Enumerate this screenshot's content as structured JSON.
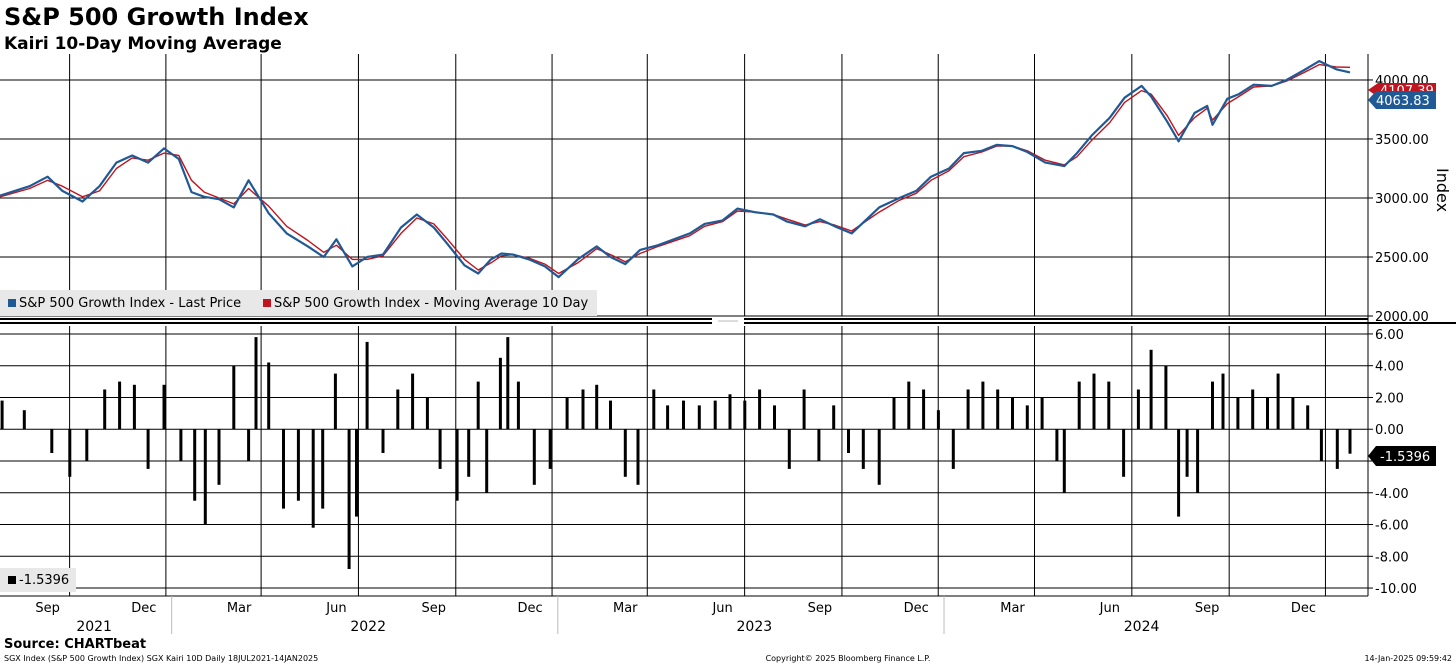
{
  "header": {
    "title": "S&P 500 Growth Index",
    "subtitle": "Kairi 10-Day Moving Average"
  },
  "footer": {
    "source": "Source: CHARTbeat",
    "left": "SGX Index (S&P 500 Growth Index) SGX Kairi 10D  Daily 18JUL2021-14JAN2025",
    "center": "Copyright© 2025 Bloomberg Finance L.P.",
    "right": "14-Jan-2025 09:59:42"
  },
  "colors": {
    "price": "#1f5a96",
    "moving_average": "#c0141e",
    "kairi": "#000000",
    "grid": "#000000"
  },
  "chart_data": [
    {
      "type": "line",
      "ylabel": "Index",
      "ylim": [
        2000,
        4220
      ],
      "yticks": [
        "2000.00",
        "2500.00",
        "3000.00",
        "3500.00",
        "4000.00"
      ],
      "grid": true,
      "legend_placement": "bottom-left",
      "legend": [
        "S&P 500 Growth Index - Last Price",
        "S&P 500 Growth Index - Moving Average 10 Day"
      ],
      "last_value_tag": "4063.83",
      "ma_tag_partial": "4107.39",
      "series": [
        {
          "name": "S&P 500 Growth Index - Last Price",
          "x": [
            "2021-07-18",
            "2021-08-15",
            "2021-09-01",
            "2021-09-15",
            "2021-10-04",
            "2021-10-20",
            "2021-11-05",
            "2021-11-20",
            "2021-12-05",
            "2021-12-20",
            "2022-01-03",
            "2022-01-15",
            "2022-01-27",
            "2022-02-10",
            "2022-02-24",
            "2022-03-10",
            "2022-03-29",
            "2022-04-15",
            "2022-05-05",
            "2022-05-20",
            "2022-06-01",
            "2022-06-16",
            "2022-06-30",
            "2022-07-15",
            "2022-08-01",
            "2022-08-16",
            "2022-09-01",
            "2022-09-13",
            "2022-09-30",
            "2022-10-13",
            "2022-10-25",
            "2022-11-04",
            "2022-11-15",
            "2022-11-30",
            "2022-12-15",
            "2022-12-28",
            "2023-01-15",
            "2023-02-02",
            "2023-02-15",
            "2023-03-01",
            "2023-03-15",
            "2023-04-01",
            "2023-05-01",
            "2023-05-15",
            "2023-06-01",
            "2023-06-15",
            "2023-07-01",
            "2023-07-19",
            "2023-08-01",
            "2023-08-18",
            "2023-09-01",
            "2023-09-15",
            "2023-10-01",
            "2023-10-27",
            "2023-11-15",
            "2023-12-01",
            "2023-12-15",
            "2024-01-01",
            "2024-01-15",
            "2024-02-01",
            "2024-02-15",
            "2024-03-01",
            "2024-03-15",
            "2024-04-01",
            "2024-04-19",
            "2024-05-01",
            "2024-05-15",
            "2024-06-01",
            "2024-06-15",
            "2024-07-01",
            "2024-07-10",
            "2024-07-25",
            "2024-08-05",
            "2024-08-20",
            "2024-09-01",
            "2024-09-06",
            "2024-09-20",
            "2024-10-01",
            "2024-10-15",
            "2024-11-01",
            "2024-11-15",
            "2024-12-01",
            "2024-12-16",
            "2025-01-01",
            "2025-01-14"
          ],
          "values": [
            3020,
            3100,
            3180,
            3060,
            2970,
            3100,
            3300,
            3360,
            3300,
            3420,
            3330,
            3050,
            3010,
            2990,
            2920,
            3150,
            2870,
            2700,
            2590,
            2500,
            2650,
            2420,
            2500,
            2520,
            2750,
            2860,
            2750,
            2620,
            2430,
            2360,
            2480,
            2530,
            2520,
            2480,
            2420,
            2330,
            2480,
            2590,
            2500,
            2440,
            2560,
            2600,
            2700,
            2780,
            2810,
            2910,
            2880,
            2860,
            2800,
            2760,
            2820,
            2760,
            2700,
            2920,
            3000,
            3060,
            3180,
            3250,
            3380,
            3400,
            3450,
            3440,
            3390,
            3300,
            3270,
            3380,
            3530,
            3680,
            3850,
            3950,
            3860,
            3650,
            3480,
            3720,
            3780,
            3620,
            3840,
            3880,
            3960,
            3950,
            4000,
            4080,
            4160,
            4090,
            4064
          ]
        },
        {
          "name": "S&P 500 Growth Index - Moving Average 10 Day",
          "x": [
            "2021-07-18",
            "2021-08-15",
            "2021-09-01",
            "2021-09-15",
            "2021-10-04",
            "2021-10-20",
            "2021-11-05",
            "2021-11-20",
            "2021-12-05",
            "2021-12-20",
            "2022-01-03",
            "2022-01-15",
            "2022-01-27",
            "2022-02-10",
            "2022-02-24",
            "2022-03-10",
            "2022-03-29",
            "2022-04-15",
            "2022-05-05",
            "2022-05-20",
            "2022-06-01",
            "2022-06-16",
            "2022-06-30",
            "2022-07-15",
            "2022-08-01",
            "2022-08-16",
            "2022-09-01",
            "2022-09-13",
            "2022-09-30",
            "2022-10-13",
            "2022-10-25",
            "2022-11-04",
            "2022-11-15",
            "2022-11-30",
            "2022-12-15",
            "2022-12-28",
            "2023-01-15",
            "2023-02-02",
            "2023-02-15",
            "2023-03-01",
            "2023-03-15",
            "2023-04-01",
            "2023-05-01",
            "2023-05-15",
            "2023-06-01",
            "2023-06-15",
            "2023-07-01",
            "2023-07-19",
            "2023-08-01",
            "2023-08-18",
            "2023-09-01",
            "2023-09-15",
            "2023-10-01",
            "2023-10-27",
            "2023-11-15",
            "2023-12-01",
            "2023-12-15",
            "2024-01-01",
            "2024-01-15",
            "2024-02-01",
            "2024-02-15",
            "2024-03-01",
            "2024-03-15",
            "2024-04-01",
            "2024-04-19",
            "2024-05-01",
            "2024-05-15",
            "2024-06-01",
            "2024-06-15",
            "2024-07-01",
            "2024-07-10",
            "2024-07-25",
            "2024-08-05",
            "2024-08-20",
            "2024-09-01",
            "2024-09-06",
            "2024-09-20",
            "2024-10-01",
            "2024-10-15",
            "2024-11-01",
            "2024-11-15",
            "2024-12-01",
            "2024-12-16",
            "2025-01-01",
            "2025-01-14"
          ],
          "values": [
            3010,
            3080,
            3150,
            3100,
            3010,
            3060,
            3250,
            3340,
            3320,
            3380,
            3360,
            3150,
            3050,
            3000,
            2950,
            3080,
            2930,
            2760,
            2640,
            2540,
            2600,
            2480,
            2480,
            2510,
            2700,
            2830,
            2780,
            2660,
            2480,
            2390,
            2450,
            2510,
            2520,
            2490,
            2440,
            2360,
            2450,
            2570,
            2520,
            2460,
            2530,
            2590,
            2680,
            2760,
            2800,
            2890,
            2880,
            2860,
            2820,
            2770,
            2800,
            2770,
            2720,
            2880,
            2980,
            3040,
            3150,
            3230,
            3350,
            3390,
            3440,
            3440,
            3400,
            3320,
            3280,
            3350,
            3490,
            3640,
            3810,
            3910,
            3880,
            3700,
            3530,
            3680,
            3760,
            3660,
            3800,
            3860,
            3940,
            3950,
            3990,
            4060,
            4130,
            4110,
            4107
          ]
        }
      ]
    },
    {
      "type": "bar",
      "series_name": "SGX Kairi 10D",
      "ylim": [
        -10.5,
        6.5
      ],
      "yticks": [
        "6.00",
        "4.00",
        "2.00",
        "0.00",
        "-2.00",
        "-4.00",
        "-6.00",
        "-8.00",
        "-10.00"
      ],
      "grid": true,
      "legend_placement": "bottom-left",
      "legend": [
        "-1.5396"
      ],
      "last_value_tag": "-1.5396",
      "x": [
        "2021-07-20",
        "2021-08-10",
        "2021-09-05",
        "2021-09-22",
        "2021-10-08",
        "2021-10-25",
        "2021-11-08",
        "2021-11-22",
        "2021-12-05",
        "2021-12-20",
        "2022-01-05",
        "2022-01-18",
        "2022-01-28",
        "2022-02-10",
        "2022-02-24",
        "2022-03-10",
        "2022-03-17",
        "2022-03-29",
        "2022-04-12",
        "2022-04-26",
        "2022-05-10",
        "2022-05-19",
        "2022-05-31",
        "2022-06-13",
        "2022-06-20",
        "2022-06-30",
        "2022-07-15",
        "2022-07-29",
        "2022-08-12",
        "2022-08-26",
        "2022-09-07",
        "2022-09-23",
        "2022-10-04",
        "2022-10-13",
        "2022-10-21",
        "2022-11-03",
        "2022-11-10",
        "2022-11-20",
        "2022-12-05",
        "2022-12-20",
        "2023-01-05",
        "2023-01-20",
        "2023-02-02",
        "2023-02-15",
        "2023-03-01",
        "2023-03-13",
        "2023-03-28",
        "2023-04-10",
        "2023-04-25",
        "2023-05-10",
        "2023-05-25",
        "2023-06-08",
        "2023-06-22",
        "2023-07-06",
        "2023-07-20",
        "2023-08-03",
        "2023-08-17",
        "2023-08-31",
        "2023-09-14",
        "2023-09-28",
        "2023-10-12",
        "2023-10-27",
        "2023-11-10",
        "2023-11-24",
        "2023-12-08",
        "2023-12-22",
        "2024-01-05",
        "2024-01-19",
        "2024-02-02",
        "2024-02-16",
        "2024-03-01",
        "2024-03-15",
        "2024-03-29",
        "2024-04-12",
        "2024-04-19",
        "2024-05-03",
        "2024-05-17",
        "2024-05-31",
        "2024-06-14",
        "2024-06-28",
        "2024-07-10",
        "2024-07-24",
        "2024-08-05",
        "2024-08-13",
        "2024-08-23",
        "2024-09-06",
        "2024-09-16",
        "2024-09-30",
        "2024-10-14",
        "2024-10-28",
        "2024-11-07",
        "2024-11-21",
        "2024-12-05",
        "2024-12-18",
        "2025-01-02",
        "2025-01-14"
      ],
      "values": [
        1.8,
        1.2,
        -1.5,
        -3.0,
        -2.0,
        2.5,
        3.0,
        2.8,
        -2.5,
        2.8,
        -2.0,
        -4.5,
        -6.0,
        -3.5,
        4.0,
        -2.0,
        5.8,
        4.2,
        -5.0,
        -4.5,
        -6.2,
        -5.0,
        3.5,
        -8.8,
        -5.5,
        5.5,
        -1.5,
        2.5,
        3.5,
        2.0,
        -2.5,
        -4.5,
        -3.0,
        3.0,
        -4.0,
        4.5,
        5.8,
        3.0,
        -3.5,
        -2.5,
        2.0,
        2.5,
        2.8,
        1.8,
        -3.0,
        -3.5,
        2.5,
        1.5,
        1.8,
        1.5,
        1.8,
        2.2,
        1.8,
        2.5,
        1.5,
        -2.5,
        2.5,
        -2.0,
        1.5,
        -1.5,
        -2.5,
        -3.5,
        2.0,
        3.0,
        2.5,
        1.2,
        -2.5,
        2.5,
        3.0,
        2.5,
        2.0,
        1.5,
        2.0,
        -2.0,
        -4.0,
        3.0,
        3.5,
        3.0,
        -3.0,
        2.5,
        5.0,
        4.0,
        -5.5,
        -3.0,
        -4.0,
        3.0,
        3.5,
        2.0,
        2.5,
        2.0,
        3.5,
        2.0,
        1.5,
        -2.0,
        -2.5,
        -1.5396
      ]
    }
  ],
  "x_axis": {
    "month_labels": [
      "Sep",
      "Dec",
      "Mar",
      "Jun",
      "Sep",
      "Dec",
      "Mar",
      "Jun",
      "Sep",
      "Dec",
      "Mar",
      "Jun",
      "Sep",
      "Dec"
    ],
    "year_labels": [
      "2021",
      "2022",
      "2023",
      "2024"
    ]
  }
}
